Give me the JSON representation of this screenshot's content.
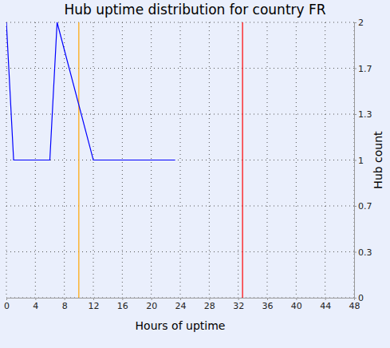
{
  "chart_data": {
    "type": "line",
    "title": "Hub uptime distribution for country FR",
    "x_label": "Hours of uptime",
    "y_label": "Hub count",
    "x": [
      0,
      1,
      6,
      7,
      12,
      23.3
    ],
    "series": [
      {
        "color": "#0000ff",
        "values": [
          2,
          1,
          1,
          2,
          1,
          1
        ]
      }
    ],
    "reference_lines": [
      {
        "x": 10,
        "color": "#ffa500"
      },
      {
        "x": 32.6,
        "color": "#ff0000"
      }
    ],
    "xlim": [
      0,
      48
    ],
    "xticks": [
      0,
      4,
      8,
      12,
      16,
      20,
      24,
      28,
      32,
      36,
      40,
      44,
      48
    ],
    "ylim": [
      0,
      2
    ],
    "yticks": [
      0,
      {
        "value": 0.3333,
        "label": "0.3"
      },
      {
        "value": 0.6667,
        "label": "0.7"
      },
      1,
      {
        "value": 1.3333,
        "label": "1.3"
      },
      {
        "value": 1.6667,
        "label": "1.7"
      },
      2
    ],
    "grid": true
  }
}
